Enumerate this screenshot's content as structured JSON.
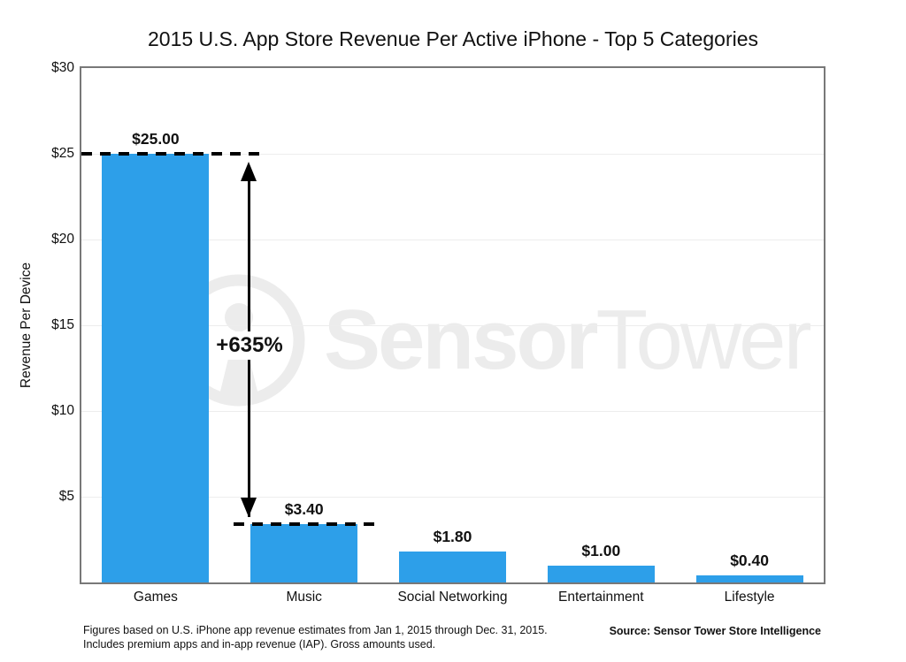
{
  "title": "2015 U.S. App Store Revenue Per Active iPhone - Top 5 Categories",
  "chart_data": {
    "type": "bar",
    "categories": [
      "Games",
      "Music",
      "Social Networking",
      "Entertainment",
      "Lifestyle"
    ],
    "values": [
      25.0,
      3.4,
      1.8,
      1.0,
      0.4
    ],
    "value_labels": [
      "$25.00",
      "$3.40",
      "$1.80",
      "$1.00",
      "$0.40"
    ],
    "title": "2015 U.S. App Store Revenue Per Active iPhone - Top 5 Categories",
    "xlabel": "",
    "ylabel": "Revenue Per Device",
    "ylim": [
      0,
      30
    ],
    "yticks": [
      5,
      10,
      15,
      20,
      25,
      30
    ],
    "ytick_labels": [
      "$5",
      "$10",
      "$15",
      "$20",
      "$25",
      "$30"
    ],
    "grid": "horizontal-light",
    "legend": "none",
    "bar_color": "#2D9FE9",
    "axis_border_color": "#787878",
    "gridline_color": "#ededed",
    "annotation": {
      "label": "+635%",
      "from_value": 25.0,
      "to_value": 3.4,
      "style": "double-headed-arrow-between-dashed-reference-lines",
      "color": "#000000"
    }
  },
  "watermark": {
    "text_bold": "Sensor",
    "text_light": "Tower",
    "color": "#ececec"
  },
  "footer": {
    "note_line1": "Figures based on U.S. iPhone app revenue estimates from Jan 1, 2015 through Dec. 31, 2015.",
    "note_line2": "Includes premium apps and in-app revenue (IAP). Gross amounts used.",
    "source": "Source: Sensor Tower Store Intelligence"
  }
}
